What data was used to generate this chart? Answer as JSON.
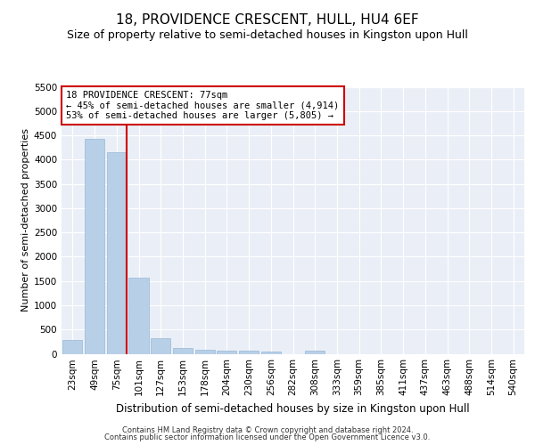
{
  "title": "18, PROVIDENCE CRESCENT, HULL, HU4 6EF",
  "subtitle": "Size of property relative to semi-detached houses in Kingston upon Hull",
  "xlabel": "Distribution of semi-detached houses by size in Kingston upon Hull",
  "ylabel": "Number of semi-detached properties",
  "categories": [
    "23sqm",
    "49sqm",
    "75sqm",
    "101sqm",
    "127sqm",
    "153sqm",
    "178sqm",
    "204sqm",
    "230sqm",
    "256sqm",
    "282sqm",
    "308sqm",
    "333sqm",
    "359sqm",
    "385sqm",
    "411sqm",
    "437sqm",
    "463sqm",
    "488sqm",
    "514sqm",
    "540sqm"
  ],
  "values": [
    280,
    4420,
    4150,
    1560,
    320,
    120,
    75,
    65,
    60,
    55,
    0,
    65,
    0,
    0,
    0,
    0,
    0,
    0,
    0,
    0,
    0
  ],
  "bar_color": "#b8cfe8",
  "vline_color": "#cc0000",
  "vline_index": 2,
  "annotation_text": "18 PROVIDENCE CRESCENT: 77sqm\n← 45% of semi-detached houses are smaller (4,914)\n53% of semi-detached houses are larger (5,805) →",
  "annotation_box_color": "#cc0000",
  "ylim": [
    0,
    5500
  ],
  "yticks": [
    0,
    500,
    1000,
    1500,
    2000,
    2500,
    3000,
    3500,
    4000,
    4500,
    5000,
    5500
  ],
  "footer1": "Contains HM Land Registry data © Crown copyright and database right 2024.",
  "footer2": "Contains public sector information licensed under the Open Government Licence v3.0.",
  "bg_color": "#eaeff7",
  "grid_color": "#ffffff",
  "title_fontsize": 11,
  "subtitle_fontsize": 9,
  "xlabel_fontsize": 8.5,
  "ylabel_fontsize": 8,
  "tick_fontsize": 7.5,
  "annotation_fontsize": 7.5,
  "footer_fontsize": 6
}
